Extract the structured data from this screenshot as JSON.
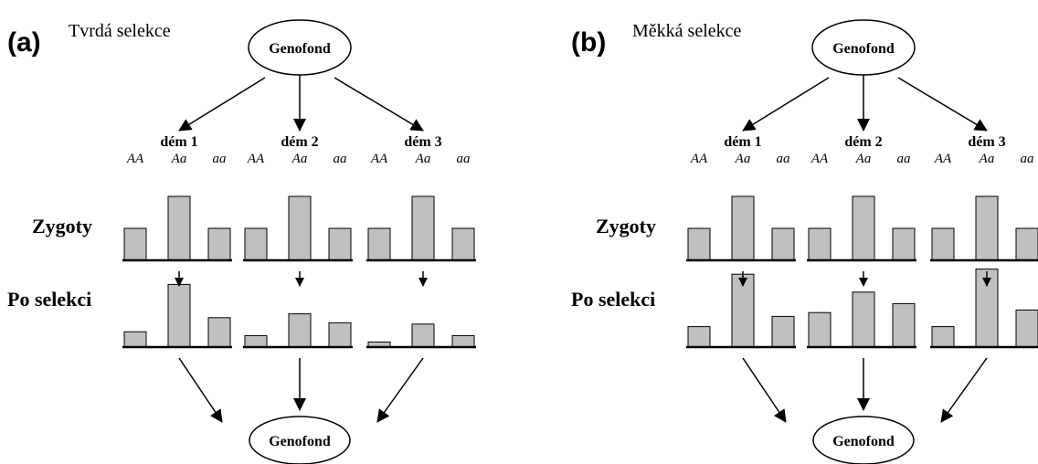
{
  "panels": [
    {
      "label": "(a)",
      "title": "Tvrdá selekce",
      "pool_top": "Genofond",
      "pool_bottom": "Genofond",
      "row_labels": [
        "Zygoty",
        "Po selekci"
      ],
      "demes": [
        {
          "name": "dém 1",
          "genotypes": [
            "AA",
            "Aa",
            "aa"
          ],
          "zygotes": [
            25,
            50,
            25
          ],
          "after": [
            12,
            49,
            23
          ]
        },
        {
          "name": "dém 2",
          "genotypes": [
            "AA",
            "Aa",
            "aa"
          ],
          "zygotes": [
            25,
            50,
            25
          ],
          "after": [
            9,
            26,
            19
          ]
        },
        {
          "name": "dém 3",
          "genotypes": [
            "AA",
            "Aa",
            "aa"
          ],
          "zygotes": [
            25,
            50,
            25
          ],
          "after": [
            4,
            18,
            9
          ]
        }
      ]
    },
    {
      "label": "(b)",
      "title": "Měkká selekce",
      "pool_top": "Genofond",
      "pool_bottom": "Genofond",
      "row_labels": [
        "Zygoty",
        "Po selekci"
      ],
      "demes": [
        {
          "name": "dém 1",
          "genotypes": [
            "AA",
            "Aa",
            "aa"
          ],
          "zygotes": [
            25,
            50,
            25
          ],
          "after": [
            16,
            57,
            24
          ]
        },
        {
          "name": "dém 2",
          "genotypes": [
            "AA",
            "Aa",
            "aa"
          ],
          "zygotes": [
            25,
            50,
            25
          ],
          "after": [
            27,
            43,
            34
          ]
        },
        {
          "name": "dém 3",
          "genotypes": [
            "AA",
            "Aa",
            "aa"
          ],
          "zygotes": [
            25,
            50,
            25
          ],
          "after": [
            16,
            61,
            29
          ]
        }
      ]
    }
  ]
}
